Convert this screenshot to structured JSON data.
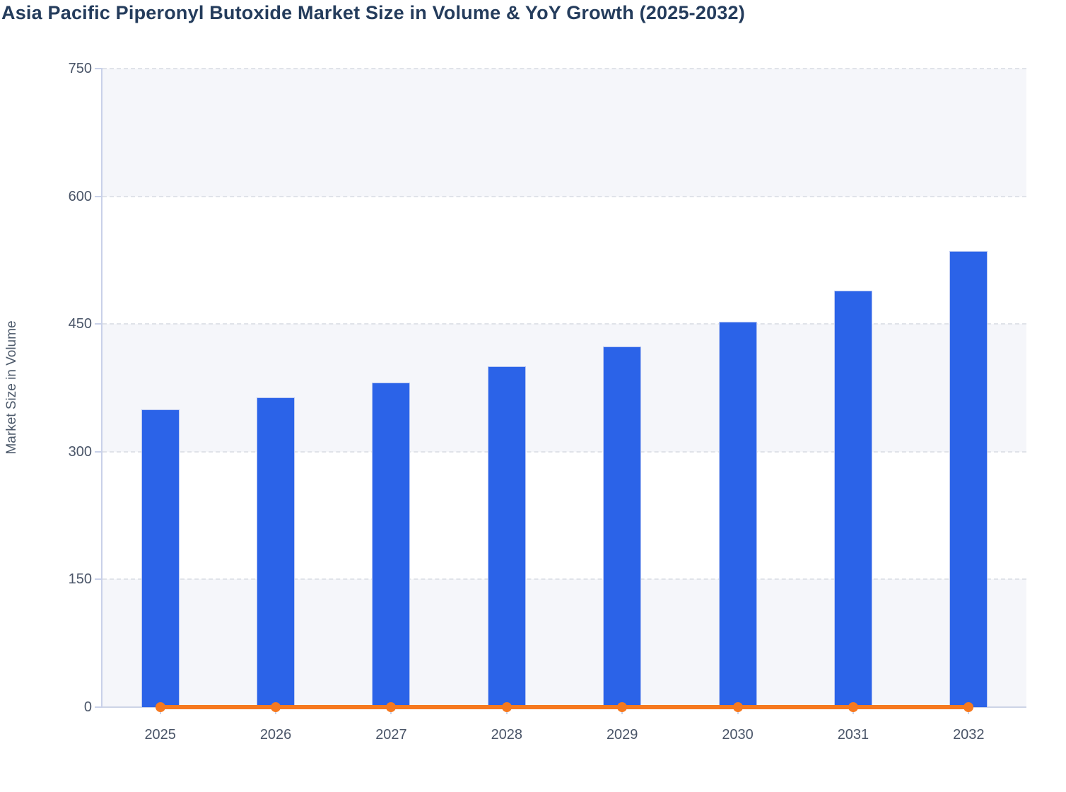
{
  "chart_data": {
    "type": "bar+line",
    "title": "Asia Pacific Piperonyl Butoxide Market Size in Volume & YoY Growth (2025-2032)",
    "ylabel": "Market Size in Volume",
    "xlabel": "",
    "categories": [
      "2025",
      "2026",
      "2027",
      "2028",
      "2029",
      "2030",
      "2031",
      "2032"
    ],
    "series": [
      {
        "name": "Market Size in Volume",
        "type": "bar",
        "values": [
          350,
          364,
          381,
          400,
          424,
          453,
          489,
          536
        ]
      },
      {
        "name": "YoY Growth",
        "type": "line",
        "values": [
          0,
          0,
          0,
          0,
          0,
          0,
          0,
          0
        ]
      }
    ],
    "ylim": [
      0,
      750
    ],
    "yticks": [
      0,
      150,
      300,
      450,
      600,
      750
    ],
    "grid": "horizontal-dashed",
    "legend": "none",
    "plot_background": "alternating-bands"
  },
  "colors": {
    "bar": "#2b63e8",
    "bar_border": "#bac8f2",
    "line": "#f6791f",
    "title": "#243c5c",
    "axis_label": "#4a5568",
    "y_axis_title": "#4d5a6b",
    "axis_line": "#c9d1e9",
    "x_axis_line": "#cdd4e6",
    "gridline": "#e0e3e9",
    "stripe": "#f5f6fa",
    "background": "#ffffff"
  }
}
